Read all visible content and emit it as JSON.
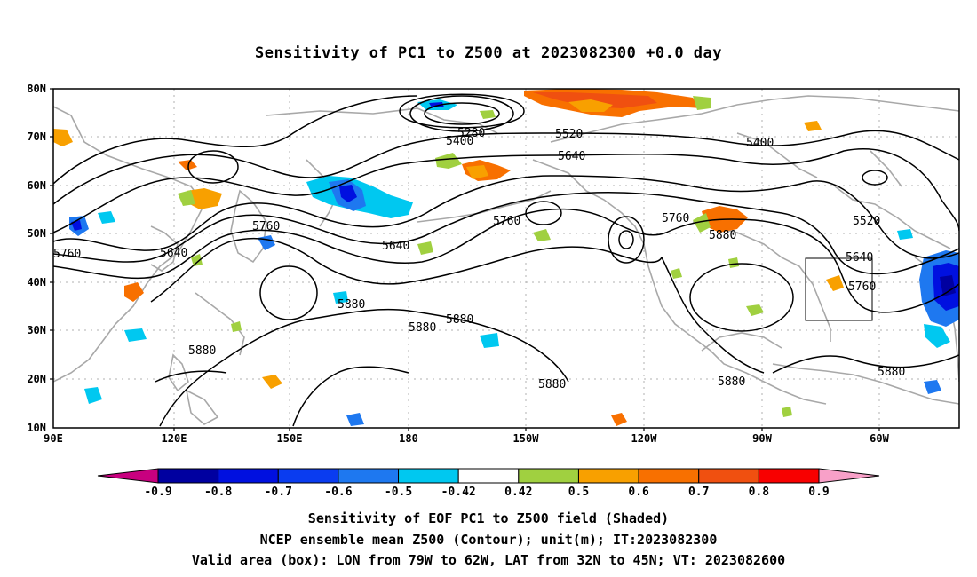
{
  "title": "Sensitivity of PC1 to Z500 at 2023082300 +0.0 day",
  "lat_labels": [
    "80N",
    "70N",
    "60N",
    "50N",
    "40N",
    "30N",
    "20N",
    "10N"
  ],
  "lon_labels": [
    "90E",
    "120E",
    "150E",
    "180",
    "150W",
    "120W",
    "90W",
    "60W"
  ],
  "contour_labels": [
    {
      "text": "5280"
    },
    {
      "text": "5400"
    },
    {
      "text": "5520"
    },
    {
      "text": "5400"
    },
    {
      "text": "5640"
    },
    {
      "text": "5760"
    },
    {
      "text": "5760"
    },
    {
      "text": "5520"
    },
    {
      "text": "5760"
    },
    {
      "text": "5640"
    },
    {
      "text": "5640"
    },
    {
      "text": "5880"
    },
    {
      "text": "5640"
    },
    {
      "text": "5760"
    },
    {
      "text": "5760"
    },
    {
      "text": "5880"
    },
    {
      "text": "5880"
    },
    {
      "text": "5880"
    },
    {
      "text": "5880"
    },
    {
      "text": "5880"
    },
    {
      "text": "5880"
    },
    {
      "text": "5880"
    }
  ],
  "colorbar": {
    "labels": [
      "-0.9",
      "-0.8",
      "-0.7",
      "-0.6",
      "-0.5",
      "-0.42",
      "0.42",
      "0.5",
      "0.6",
      "0.7",
      "0.8",
      "0.9"
    ],
    "colors": {
      "below": "#c8007f",
      "bins": [
        "#0000a0",
        "#0010e0",
        "#0a3cf0",
        "#1e78f0",
        "#00c8f0",
        "#ffffff",
        "#a0d040",
        "#f8a000",
        "#f87000",
        "#f05010",
        "#f80000"
      ],
      "above": "#f8a0c8"
    }
  },
  "valid_box": {
    "lon_west": -79,
    "lon_east": -62,
    "lat_south": 32,
    "lat_north": 45
  },
  "captions": [
    "Sensitivity of EOF PC1 to Z500 field (Shaded)",
    "NCEP ensemble mean Z500 (Contour); unit(m); IT:2023082300",
    "Valid area (box): LON from 79W to 62W, LAT from 32N to 45N; VT: 2023082600"
  ]
}
